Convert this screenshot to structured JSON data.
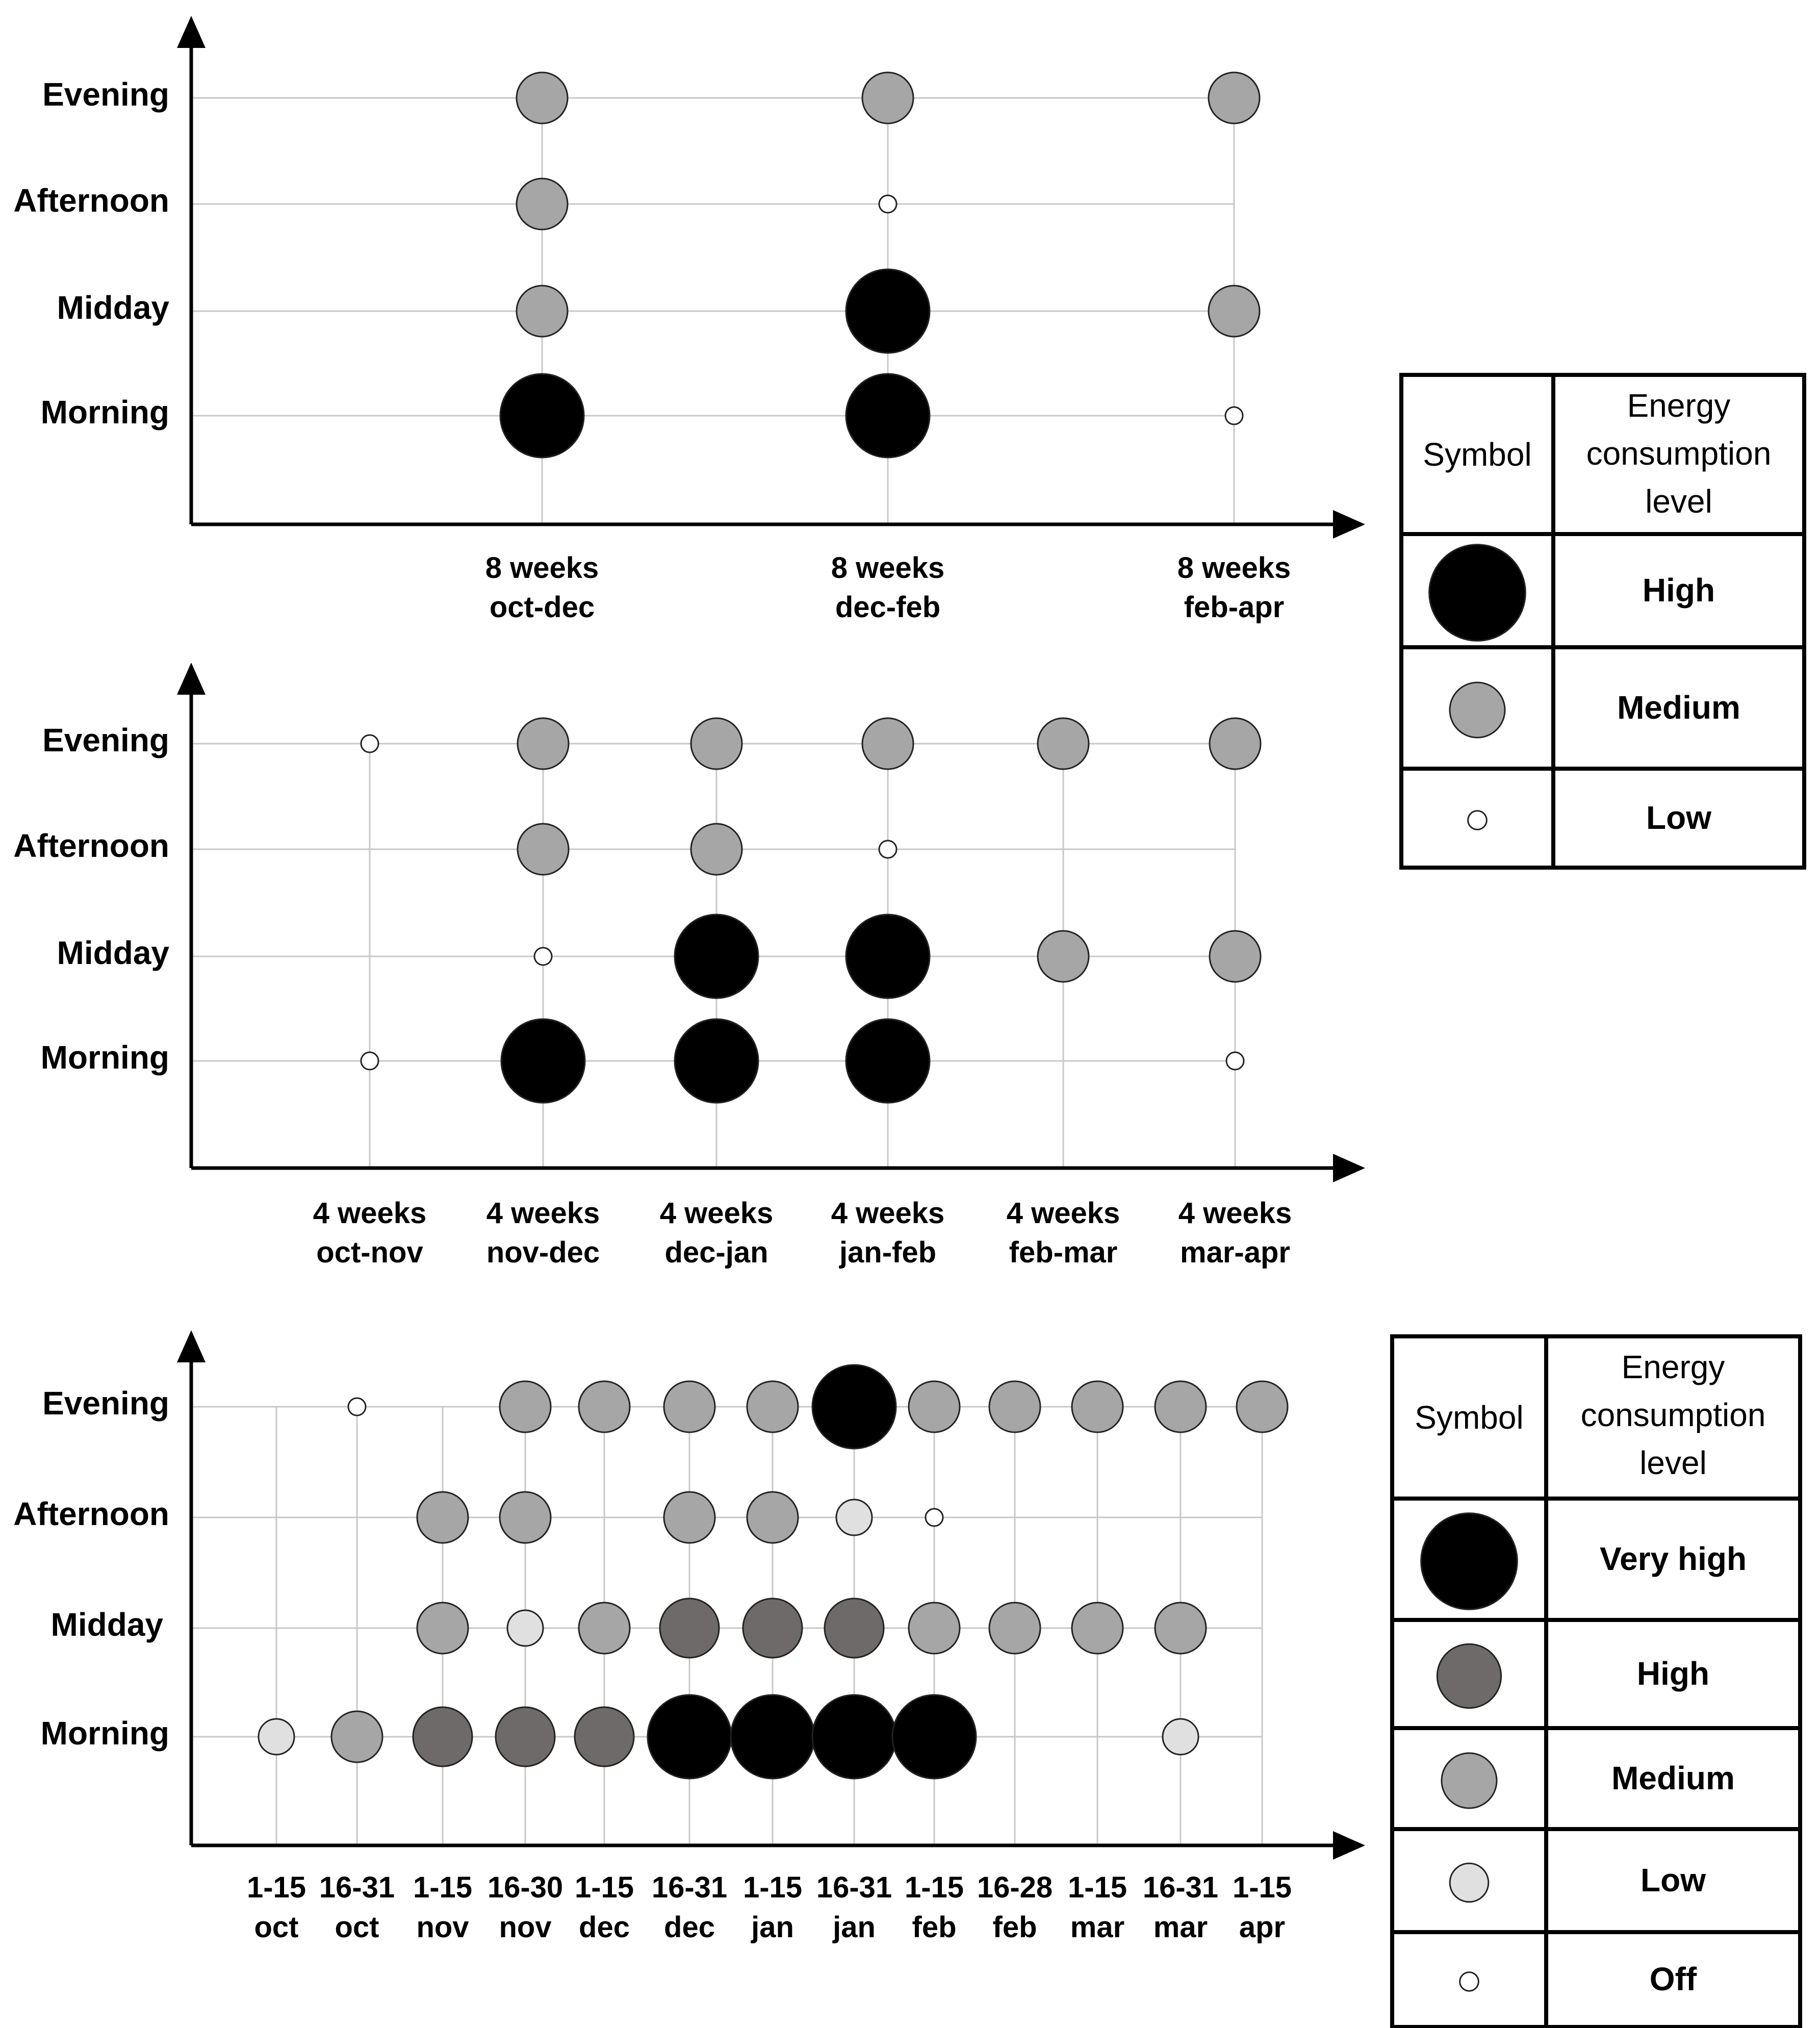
{
  "chart_data": [
    {
      "type": "scatter",
      "title": "",
      "xlabel": "",
      "ylabel": "",
      "y_categories": [
        "Morning",
        "Midday",
        "Afternoon",
        "Evening"
      ],
      "x_categories": [
        {
          "line1": "8 weeks",
          "line2": "oct-dec"
        },
        {
          "line1": "8 weeks",
          "line2": "dec-feb"
        },
        {
          "line1": "8 weeks",
          "line2": "feb-apr"
        }
      ],
      "points": [
        {
          "x": 0,
          "y": "Evening",
          "level": "Medium"
        },
        {
          "x": 1,
          "y": "Evening",
          "level": "Medium"
        },
        {
          "x": 2,
          "y": "Evening",
          "level": "Medium"
        },
        {
          "x": 0,
          "y": "Afternoon",
          "level": "Medium"
        },
        {
          "x": 1,
          "y": "Afternoon",
          "level": "Low"
        },
        {
          "x": 0,
          "y": "Midday",
          "level": "Medium"
        },
        {
          "x": 1,
          "y": "Midday",
          "level": "High"
        },
        {
          "x": 2,
          "y": "Midday",
          "level": "Medium"
        },
        {
          "x": 0,
          "y": "Morning",
          "level": "High"
        },
        {
          "x": 1,
          "y": "Morning",
          "level": "High"
        },
        {
          "x": 2,
          "y": "Morning",
          "level": "Low"
        }
      ]
    },
    {
      "type": "scatter",
      "title": "",
      "xlabel": "",
      "ylabel": "",
      "y_categories": [
        "Morning",
        "Midday",
        "Afternoon",
        "Evening"
      ],
      "x_categories": [
        {
          "line1": "4 weeks",
          "line2": "oct-nov"
        },
        {
          "line1": "4 weeks",
          "line2": "nov-dec"
        },
        {
          "line1": "4 weeks",
          "line2": "dec-jan"
        },
        {
          "line1": "4 weeks",
          "line2": "jan-feb"
        },
        {
          "line1": "4 weeks",
          "line2": "feb-mar"
        },
        {
          "line1": "4 weeks",
          "line2": "mar-apr"
        }
      ],
      "points": [
        {
          "x": 0,
          "y": "Evening",
          "level": "Low"
        },
        {
          "x": 1,
          "y": "Evening",
          "level": "Medium"
        },
        {
          "x": 2,
          "y": "Evening",
          "level": "Medium"
        },
        {
          "x": 3,
          "y": "Evening",
          "level": "Medium"
        },
        {
          "x": 4,
          "y": "Evening",
          "level": "Medium"
        },
        {
          "x": 5,
          "y": "Evening",
          "level": "Medium"
        },
        {
          "x": 1,
          "y": "Afternoon",
          "level": "Medium"
        },
        {
          "x": 2,
          "y": "Afternoon",
          "level": "Medium"
        },
        {
          "x": 3,
          "y": "Afternoon",
          "level": "Low"
        },
        {
          "x": 1,
          "y": "Midday",
          "level": "Low"
        },
        {
          "x": 2,
          "y": "Midday",
          "level": "High"
        },
        {
          "x": 3,
          "y": "Midday",
          "level": "High"
        },
        {
          "x": 4,
          "y": "Midday",
          "level": "Medium"
        },
        {
          "x": 5,
          "y": "Midday",
          "level": "Medium"
        },
        {
          "x": 0,
          "y": "Morning",
          "level": "Low"
        },
        {
          "x": 1,
          "y": "Morning",
          "level": "High"
        },
        {
          "x": 2,
          "y": "Morning",
          "level": "High"
        },
        {
          "x": 3,
          "y": "Morning",
          "level": "High"
        },
        {
          "x": 5,
          "y": "Morning",
          "level": "Low"
        }
      ]
    },
    {
      "type": "scatter",
      "title": "",
      "xlabel": "",
      "ylabel": "",
      "y_categories": [
        "Morning",
        "Midday",
        "Afternoon",
        "Evening"
      ],
      "x_categories": [
        {
          "line1": "1-15",
          "line2": "oct"
        },
        {
          "line1": "16-31",
          "line2": "oct"
        },
        {
          "line1": "1-15",
          "line2": "nov"
        },
        {
          "line1": "16-30",
          "line2": "nov"
        },
        {
          "line1": "1-15",
          "line2": "dec"
        },
        {
          "line1": "16-31",
          "line2": "dec"
        },
        {
          "line1": "1-15",
          "line2": "jan"
        },
        {
          "line1": "16-31",
          "line2": "jan"
        },
        {
          "line1": "1-15",
          "line2": "feb"
        },
        {
          "line1": "16-28",
          "line2": "feb"
        },
        {
          "line1": "1-15",
          "line2": "mar"
        },
        {
          "line1": "16-31",
          "line2": "mar"
        },
        {
          "line1": "1-15",
          "line2": "apr"
        }
      ],
      "points": [
        {
          "x": 1,
          "y": "Evening",
          "level": "Off"
        },
        {
          "x": 3,
          "y": "Evening",
          "level": "Medium"
        },
        {
          "x": 4,
          "y": "Evening",
          "level": "Medium"
        },
        {
          "x": 5,
          "y": "Evening",
          "level": "Medium"
        },
        {
          "x": 6,
          "y": "Evening",
          "level": "Medium"
        },
        {
          "x": 7,
          "y": "Evening",
          "level": "Very high"
        },
        {
          "x": 8,
          "y": "Evening",
          "level": "Medium"
        },
        {
          "x": 9,
          "y": "Evening",
          "level": "Medium"
        },
        {
          "x": 10,
          "y": "Evening",
          "level": "Medium"
        },
        {
          "x": 11,
          "y": "Evening",
          "level": "Medium"
        },
        {
          "x": 12,
          "y": "Evening",
          "level": "Medium"
        },
        {
          "x": 2,
          "y": "Afternoon",
          "level": "Medium"
        },
        {
          "x": 3,
          "y": "Afternoon",
          "level": "Medium"
        },
        {
          "x": 5,
          "y": "Afternoon",
          "level": "Medium"
        },
        {
          "x": 6,
          "y": "Afternoon",
          "level": "Medium"
        },
        {
          "x": 7,
          "y": "Afternoon",
          "level": "Low"
        },
        {
          "x": 8,
          "y": "Afternoon",
          "level": "Off"
        },
        {
          "x": 2,
          "y": "Midday",
          "level": "Medium"
        },
        {
          "x": 3,
          "y": "Midday",
          "level": "Low"
        },
        {
          "x": 4,
          "y": "Midday",
          "level": "Medium"
        },
        {
          "x": 5,
          "y": "Midday",
          "level": "High"
        },
        {
          "x": 6,
          "y": "Midday",
          "level": "High"
        },
        {
          "x": 7,
          "y": "Midday",
          "level": "High"
        },
        {
          "x": 8,
          "y": "Midday",
          "level": "Medium"
        },
        {
          "x": 9,
          "y": "Midday",
          "level": "Medium"
        },
        {
          "x": 10,
          "y": "Midday",
          "level": "Medium"
        },
        {
          "x": 11,
          "y": "Midday",
          "level": "Medium"
        },
        {
          "x": 0,
          "y": "Morning",
          "level": "Low"
        },
        {
          "x": 1,
          "y": "Morning",
          "level": "Medium"
        },
        {
          "x": 2,
          "y": "Morning",
          "level": "High"
        },
        {
          "x": 3,
          "y": "Morning",
          "level": "High"
        },
        {
          "x": 4,
          "y": "Morning",
          "level": "High"
        },
        {
          "x": 5,
          "y": "Morning",
          "level": "Very high"
        },
        {
          "x": 6,
          "y": "Morning",
          "level": "Very high"
        },
        {
          "x": 7,
          "y": "Morning",
          "level": "Very high"
        },
        {
          "x": 8,
          "y": "Morning",
          "level": "Very high"
        },
        {
          "x": 11,
          "y": "Morning",
          "level": "Low"
        }
      ]
    }
  ],
  "legends": [
    {
      "header_symbol": "Symbol",
      "header_level": [
        "Energy",
        "consumption",
        "level"
      ],
      "rows": [
        {
          "label": "High",
          "style": "High"
        },
        {
          "label": "Medium",
          "style": "Medium"
        },
        {
          "label": "Low",
          "style": "Low"
        }
      ]
    },
    {
      "header_symbol": "Symbol",
      "header_level": [
        "Energy",
        "consumption",
        "level"
      ],
      "rows": [
        {
          "label": "Very high",
          "style": "Very high"
        },
        {
          "label": "High",
          "style": "High"
        },
        {
          "label": "Medium",
          "style": "Medium"
        },
        {
          "label": "Low",
          "style": "Low"
        },
        {
          "label": "Off",
          "style": "Off"
        }
      ]
    }
  ],
  "colors": {
    "Very high": "#000000",
    "High3": "#6f6a6a",
    "Medium": "#a6a6a6",
    "Low3": "#e0e0e0",
    "Off": "#ffffff",
    "High": "#000000",
    "Low": "#ffffff",
    "grid": "#c8c8c8",
    "axis": "#000000"
  }
}
